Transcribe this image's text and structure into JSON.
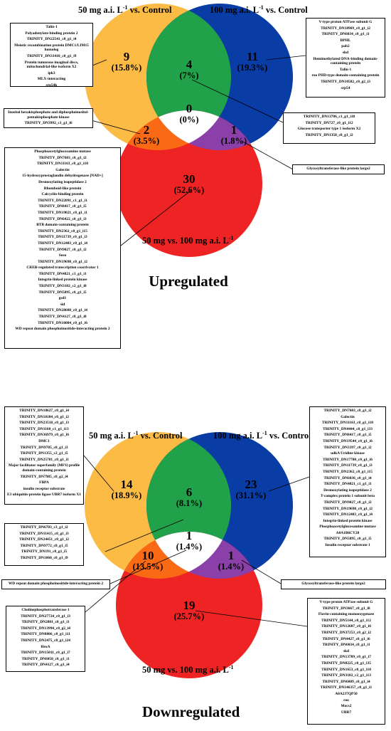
{
  "up": {
    "title": "Upregulated",
    "set_left": {
      "pre": "50 mg a.i. L",
      "sup": "-1",
      "post": " vs. Control"
    },
    "set_right": {
      "pre": "100 mg a.i. L",
      "sup": "-1",
      "post": " vs. Control"
    },
    "set_bottom": {
      "pre": "50 mg vs. 100 mg a.i. L",
      "sup": "-1",
      "post": ""
    },
    "regions": {
      "left_only": {
        "count": "9",
        "pct": "(15.8%)"
      },
      "right_only": {
        "count": "11",
        "pct": "(19.3%)"
      },
      "bottom_only": {
        "count": "30",
        "pct": "(52.6%)"
      },
      "left_right": {
        "count": "4",
        "pct": "(7%)"
      },
      "left_bottom": {
        "count": "2",
        "pct": "(3.5%)"
      },
      "right_bottom": {
        "count": "1",
        "pct": "(1.8%)"
      },
      "all": {
        "count": "0",
        "pct": "(0%)"
      }
    },
    "box_left_only": [
      "Talin-1",
      "Polyadenylate-binding protein 2",
      "TRINITY_DN22541_c0_g1_i4",
      "Meiotic recombination protein DMC1/LIM15 homolog",
      "TRINITY_DN31410_c0_g1_i9",
      "Protein tumorous imaginal discs, mitochondrial-like isoform X2",
      "ipk3",
      "MLX-interacting",
      "srp54k"
    ],
    "box_right_only": [
      "V-type proton ATPase subunit G",
      "TRINITY_DN18969_c0_g1_i2",
      "TRINITY_DN6034_c0_g1_i1",
      "BPHL",
      "pab2",
      "skd",
      "Hemimethylated DNA-binding domain-containing protein",
      "Talin-1",
      "roo PHD-type domain-containing protein",
      "TRINITY_DN10582_c0_g2_i3",
      "srp54"
    ],
    "box_left_bottom": [
      "Inositol hexakisphosphate and diphosphoinositol-pentakisphosphate kinase",
      "TRINITY_DN3992_c1_g1_i6"
    ],
    "box_left_right": [
      "TRINITY_DN13786_c1_g1_i18",
      "TRINITY_DN727_c0_g1_i12",
      "Glucose transporter type 1 isoform X2",
      "TRINITY_DN1358_c0_g1_i2"
    ],
    "box_right_bottom": [
      "Glycosyltransferase-like protein large2"
    ],
    "box_bottom_only": [
      "Phosphoacetylglucosamine mutase",
      "TRINITY_DN7603_c0_g1_i2",
      "TRINITY_DN11163_c0_g1_i10",
      "Galectin",
      "15-hydroxyprostaglandin dehydrogenase [NAD+]",
      "Desmoxylating isopeptidase 2",
      "Rhomboid-like protein",
      "Calcyclin-binding protein",
      "TRINITY_DN22091_c1_g1_i1",
      "TRINITY_DN8417_c0_g1_i5",
      "TRINITY_DN19021_c0_g1_i1",
      "TRINITY_DN6422_c0_g1_i3",
      "BTB domain-containing protein",
      "TRINITY_DN2362_c0_g1_i15",
      "TRINITY_DN11739_c0_g1_i3",
      "TRINITY_DN12483_c0_g1_i4",
      "TRINITY_DN9027_c0_g1_i2",
      "Sesn",
      "TRINITY_DN19698_c0_g1_i2",
      "CREB-regulated transcription coactivator 1",
      "TRINITY_DN4821_c1_g1_i1",
      "Integrin-linked protein kinase",
      "TRINITY_DN3182_c2_g1_i8",
      "TRINITY_DN5895_c0_g1_i5",
      "gsd1",
      "sid",
      "TRINITY_DN28608_c0_g1_i4",
      "TRINITY_DN4127_c0_g1_i8",
      "TRINITY_DN16084_c0_g1_i6",
      "WD repeat domain phosphoinositide-interacting protein 2"
    ]
  },
  "down": {
    "title": "Downregulated",
    "set_left": {
      "pre": "50 mg a.i. L",
      "sup": "-1",
      "post": " vs. Control"
    },
    "set_right": {
      "pre": "100 mg a.i. L",
      "sup": "-1",
      "post": " vs. Control"
    },
    "set_bottom": {
      "pre": "50 mg vs. 100 mg a.i. L",
      "sup": "-1",
      "post": ""
    },
    "regions": {
      "left_only": {
        "count": "14",
        "pct": "(18.9%)"
      },
      "right_only": {
        "count": "23",
        "pct": "(31.1%)"
      },
      "bottom_only": {
        "count": "19",
        "pct": "(25.7%)"
      },
      "left_right": {
        "count": "6",
        "pct": "(8.1%)"
      },
      "left_bottom": {
        "count": "10",
        "pct": "(13.5%)"
      },
      "right_bottom": {
        "count": "1",
        "pct": "(1.4%)"
      },
      "all": {
        "count": "1",
        "pct": "(1.4%)"
      }
    },
    "box_left_only": [
      "TRINITY_DN18627_c0_g1_i4",
      "TRINITY_DN18184_c0_g1_i2",
      "TRINITY_DN23518_c0_g1_i3",
      "TRINITY_DN1160_c1_g1_i13",
      "TRINITY_DN36979_c0_g1_i6",
      "DMC1",
      "TRINITY_DN9785_c0_g1_i3",
      "TRINITY_DN1355_c2_g1_i5",
      "TRINITY_DN25701_c0_g1_i1",
      "Major facilitator superfamily (MFS) profile domain-containing protein",
      "TRINITY_DN7985_c0_g2_i4",
      "FBPA",
      "insulin receptor substrate",
      "E3 ubiquitin-protein ligase UBR7 isoform X1"
    ],
    "box_left_right": [
      "TRINITY_DN6703_c3_g1_i2",
      "TRINITY_DN11415_c0_g1_i3",
      "TRINITY_DN24451_c0_g1_i2",
      "TRINITY_DN9772_c0_g1_i5",
      "TRINITY_DN191_c0_g1_i5",
      "TRINITY_DN1060_c0_g1_i9"
    ],
    "box_all": [
      "WD repeat domain phosphoinositide-interacting protein 2"
    ],
    "box_right_only": [
      "TRINITY_DN7603_c0_g1_i2",
      "Galectin",
      "TRINITY_DN11163_c0_g1_i10",
      "TRINITY_DN4444_c0_g1_i33",
      "TRINITY_DN8417_c0_g1_i5",
      "TRINITY_DN19544_c0_g1_i6",
      "TRINITY_DN3397_c0_g1_i2",
      "udkA Uridine kinase",
      "TRINITY_DN17780_c0_g1_i6",
      "TRINITY_DN11739_c0_g1_i3",
      "TRINITY_DN2362_c0_g1_i15",
      "TRINITY_DN6036_c0_g1_i4",
      "TRINITY_DN4821_c1_g1_i1",
      "Desmoxylating isopeptidase 2",
      "T-complex protein 1 subunit beta",
      "TRINITY_DN9027_c0_g1_i2",
      "TRINITY_DN19698_c0_g1_i2",
      "TRINITY_DN12483_c0_g1_i4",
      "Integrin-linked protein kinase",
      "Phosphoacetylglucosamine mutase",
      "A0A1B6CY28",
      "TRINITY_DN5895_c0_g1_i5",
      "Insulin receptor substrate 1"
    ],
    "box_right_bottom": [
      "Glycosyltransferase-like protein large2"
    ],
    "box_left_bottom": [
      "Cholinephosphotransferase 1",
      "TRINITY_DN27724_c0_g1_i3",
      "TRINITY_DN2801_c0_g1_i1",
      "TRINITY_DN13994_c0_g2_i4",
      "TRINITY_DN8806_c0_g1_i11",
      "TRINITY_DN2475_c0_g1_i24",
      "HexA",
      "TRINITY_DN15011_c0_g1_i7",
      "TRINITY_DN6050_c0_g1_i1",
      "TRINITY_DN4127_c0_g1_i4"
    ],
    "box_bottom_only": [
      "V-type proton ATPase subunit G",
      "TRINITY_DN3667_c0_g1_i8",
      "Flavin-containing monooxygenase",
      "TRINITY_DN5144_c0_g1_i12",
      "TRINITY_DN12607_c0_g1_i6",
      "TRINITY_DN37253_c0_g2_i2",
      "TRINITY_DN4427_c0_g1_i6",
      "TRINITY_DN6034_c0_g1_i1",
      "skd",
      "TRINITY_DN13789_c0_g1_i7",
      "TRINITY_DN8225_c0_g1_i35",
      "TRINITY_DN1653_c0_g1_i10",
      "TRINITY_DN3182_c2_g1_i13",
      "TRINITY_DN6009_c0_g1_i4",
      "TRINITY_DN146357_c0_g1_i1",
      "A0A2J7QP50",
      "roo",
      "Mocs2",
      "UBR7"
    ]
  },
  "colors": {
    "left": "#fbbb45",
    "right": "#0a3ca6",
    "bottom": "#ee2323",
    "left_right": "#21a24a",
    "left_bottom": "#fa6a15",
    "right_bottom": "#8b3fa8",
    "center": "#ffffff"
  }
}
